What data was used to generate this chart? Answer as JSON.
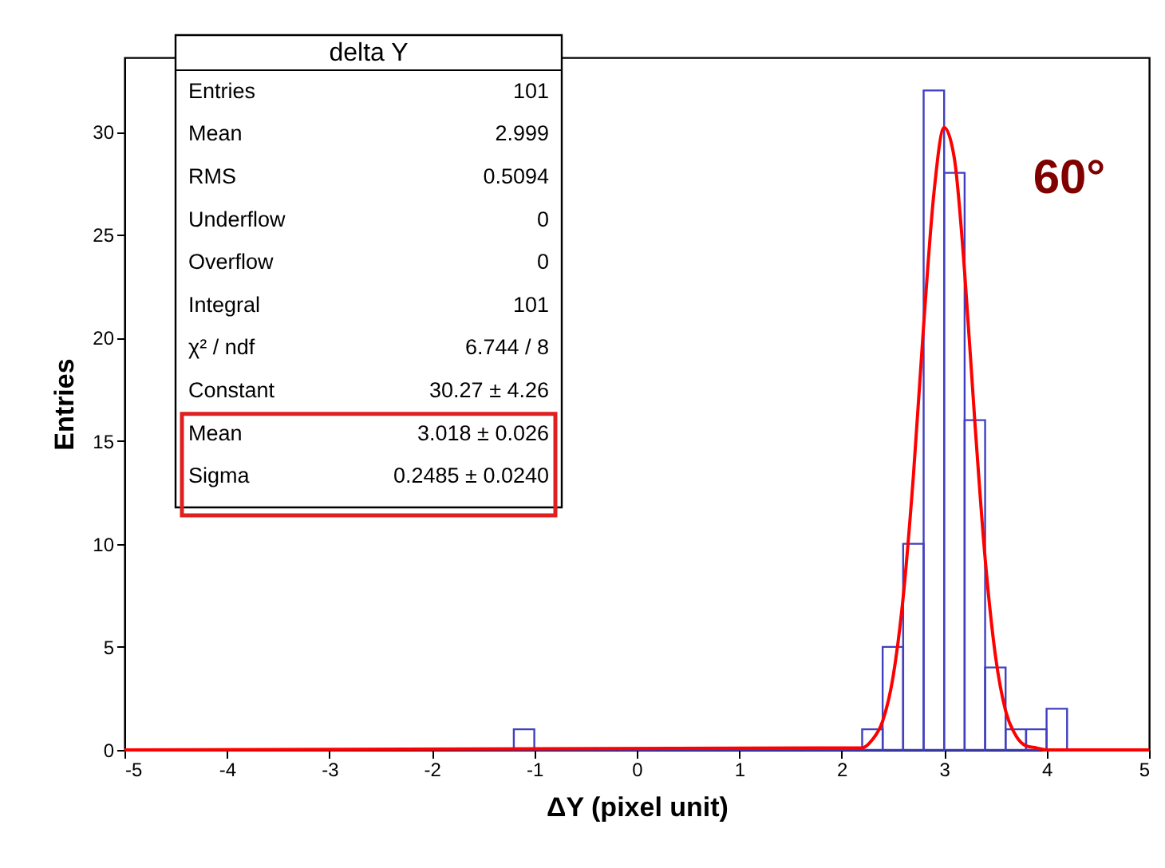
{
  "chart_data": {
    "type": "histogram",
    "xlabel": "ΔY (pixel unit)",
    "ylabel": "Entries",
    "bins": [
      -5,
      -4.8,
      -4.6,
      -4.4,
      -4.2,
      -4,
      -3.8,
      -3.6,
      -3.4,
      -3.2,
      -3,
      -2.8,
      -2.6,
      -2.4,
      -2.2,
      -2,
      -1.8,
      -1.6,
      -1.4,
      -1.2,
      -1,
      -0.8,
      -0.6,
      -0.4,
      -0.2,
      0,
      0.2,
      0.4,
      0.6,
      0.8,
      1,
      1.2,
      1.4,
      1.6,
      1.8,
      2,
      2.2,
      2.4,
      2.6,
      2.8,
      3,
      3.2,
      3.4,
      3.6,
      3.8,
      4,
      4.2,
      4.4,
      4.6,
      4.8,
      5
    ],
    "series": [
      {
        "color": "#4040c0",
        "values": [
          0,
          0,
          0,
          0,
          0,
          0,
          0,
          0,
          0,
          0,
          0,
          0,
          0,
          0,
          0,
          0,
          0,
          0,
          0,
          1,
          0,
          0,
          0,
          0,
          0,
          0,
          0,
          0,
          0,
          0,
          0,
          0,
          0,
          0,
          0,
          0,
          1,
          5,
          10,
          32,
          28,
          16,
          4,
          1,
          1,
          2,
          0,
          0,
          0,
          0
        ]
      },
      {
        "type": "line",
        "color": "#ff0000",
        "x": [
          -5,
          2.2,
          2.3,
          2.4,
          2.5,
          2.6,
          2.7,
          2.8,
          2.9,
          3.0,
          3.1,
          3.2,
          3.3,
          3.4,
          3.5,
          3.6,
          3.7,
          3.8,
          3.9,
          4.0,
          5
        ],
        "values": [
          0,
          0.1,
          0.5,
          1.4,
          3.5,
          7.4,
          13.3,
          20.6,
          27.0,
          30.2,
          28.7,
          23.2,
          15.9,
          9.3,
          4.6,
          1.9,
          0.7,
          0.2,
          0.1,
          0,
          0
        ]
      }
    ],
    "xlim": [
      -5,
      5
    ],
    "xticks": [
      -5,
      -4,
      -3,
      -2,
      -1,
      0,
      1,
      2,
      3,
      4,
      5
    ],
    "ylim": [
      0,
      33.6
    ],
    "yticks": [
      0,
      5,
      10,
      15,
      20,
      25,
      30
    ],
    "grid": false,
    "annotations": [
      "delta Y",
      "Entries",
      "101",
      "Mean",
      "2.999",
      "RMS",
      "0.5094",
      "Underflow",
      "0",
      "Overflow",
      "0",
      "Integral",
      "101",
      "χ² / ndf",
      "6.744 / 8",
      "Constant",
      "30.27 ± 4.26",
      "Mean",
      "3.018 ± 0.026",
      "Sigma",
      "0.2485 ± 0.0240",
      "60°"
    ]
  }
}
